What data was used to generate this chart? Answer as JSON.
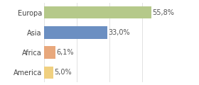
{
  "categories": [
    "Europa",
    "Asia",
    "Africa",
    "America"
  ],
  "values": [
    55.8,
    33.0,
    6.1,
    5.0
  ],
  "labels": [
    "55,8%",
    "33,0%",
    "6,1%",
    "5,0%"
  ],
  "bar_colors": [
    "#b5c98a",
    "#6b8fc2",
    "#e8a87c",
    "#f0d080"
  ],
  "background_color": "#ffffff",
  "xlim": [
    0,
    68
  ],
  "bar_height": 0.62,
  "label_fontsize": 7.0,
  "tick_fontsize": 7.0
}
